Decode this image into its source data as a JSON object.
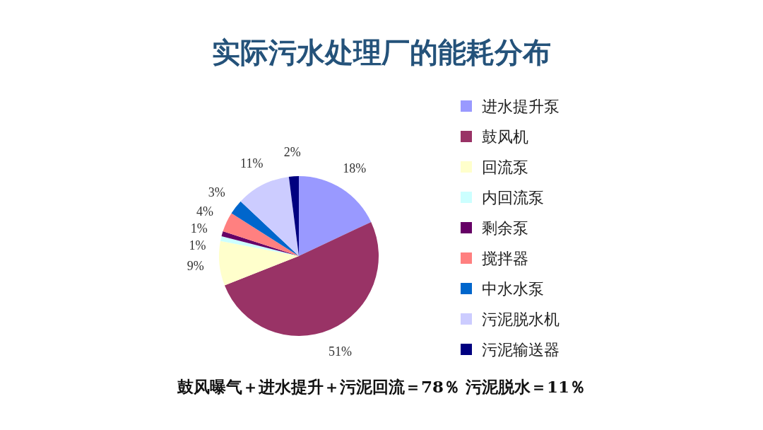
{
  "chart_data": {
    "type": "pie",
    "title": "实际污水处理厂的能耗分布",
    "categories": [
      "进水提升泵",
      "鼓风机",
      "回流泵",
      "内回流泵",
      "剩余泵",
      "搅拌器",
      "中水水泵",
      "污泥脱水机",
      "污泥输送器"
    ],
    "values": [
      18,
      51,
      9,
      1,
      1,
      4,
      3,
      11,
      2
    ],
    "colors": [
      "#9999ff",
      "#993366",
      "#ffffcc",
      "#ccffff",
      "#660066",
      "#ff8080",
      "#0066cc",
      "#ccccff",
      "#000080"
    ],
    "value_labels": [
      "18%",
      "51%",
      "9%",
      "1%",
      "1%",
      "4%",
      "3%",
      "11%",
      "2%"
    ],
    "legend": "right",
    "annotations": [
      "鼓风曝气＋进水提升＋污泥回流＝78％  污泥脱水＝11％"
    ]
  }
}
